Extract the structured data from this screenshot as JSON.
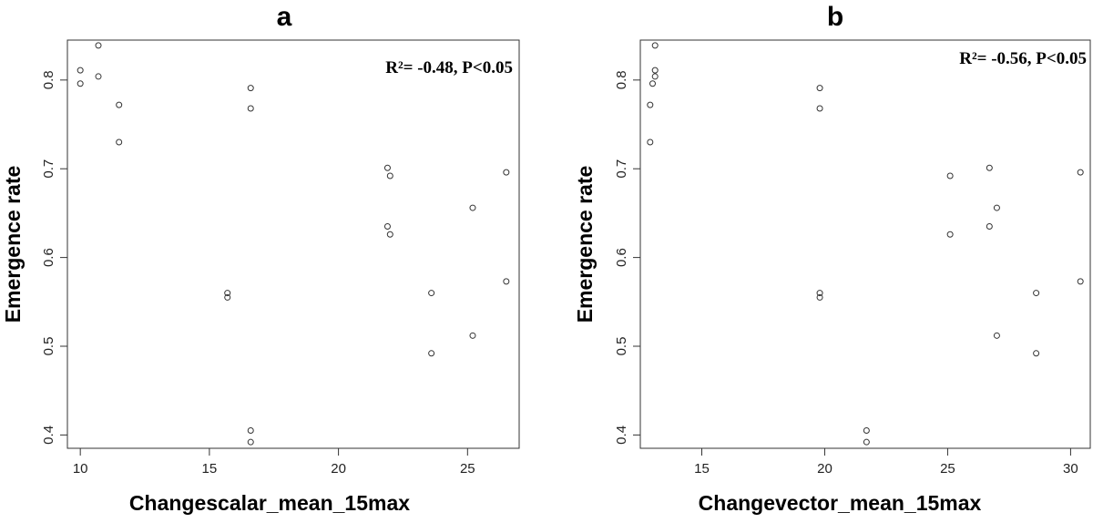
{
  "chart_data": [
    {
      "type": "scatter",
      "panel_label": "a",
      "xlabel": "Changescalar_mean_15max",
      "ylabel": "Emergence rate",
      "annotation": "R²= -0.48, P<0.05",
      "annotation_position": "top-right",
      "xlim": [
        9.5,
        27.0
      ],
      "ylim": [
        0.385,
        0.845
      ],
      "xticks": [
        "10",
        "15",
        "20",
        "25"
      ],
      "yticks": [
        "0.4",
        "0.5",
        "0.6",
        "0.7",
        "0.8"
      ],
      "grid": false,
      "points": [
        {
          "x": 10.0,
          "y": 0.811
        },
        {
          "x": 10.0,
          "y": 0.796
        },
        {
          "x": 10.7,
          "y": 0.839
        },
        {
          "x": 10.7,
          "y": 0.804
        },
        {
          "x": 11.5,
          "y": 0.772
        },
        {
          "x": 11.5,
          "y": 0.73
        },
        {
          "x": 15.7,
          "y": 0.56
        },
        {
          "x": 15.7,
          "y": 0.555
        },
        {
          "x": 16.6,
          "y": 0.791
        },
        {
          "x": 16.6,
          "y": 0.768
        },
        {
          "x": 16.6,
          "y": 0.405
        },
        {
          "x": 16.6,
          "y": 0.392
        },
        {
          "x": 21.9,
          "y": 0.701
        },
        {
          "x": 22.0,
          "y": 0.692
        },
        {
          "x": 21.9,
          "y": 0.635
        },
        {
          "x": 22.0,
          "y": 0.626
        },
        {
          "x": 23.6,
          "y": 0.56
        },
        {
          "x": 23.6,
          "y": 0.492
        },
        {
          "x": 25.2,
          "y": 0.656
        },
        {
          "x": 25.2,
          "y": 0.512
        },
        {
          "x": 26.5,
          "y": 0.696
        },
        {
          "x": 26.5,
          "y": 0.573
        }
      ]
    },
    {
      "type": "scatter",
      "panel_label": "b",
      "xlabel": "Changevector_mean_15max",
      "ylabel": "Emergence rate",
      "annotation": "R²= -0.56, P<0.05",
      "annotation_position": "top-right",
      "xlim": [
        12.5,
        30.8
      ],
      "ylim": [
        0.385,
        0.845
      ],
      "xticks": [
        "15",
        "20",
        "25",
        "30"
      ],
      "yticks": [
        "0.4",
        "0.5",
        "0.6",
        "0.7",
        "0.8"
      ],
      "grid": false,
      "points": [
        {
          "x": 13.1,
          "y": 0.839
        },
        {
          "x": 13.1,
          "y": 0.811
        },
        {
          "x": 13.1,
          "y": 0.804
        },
        {
          "x": 13.0,
          "y": 0.796
        },
        {
          "x": 12.9,
          "y": 0.772
        },
        {
          "x": 12.9,
          "y": 0.73
        },
        {
          "x": 19.8,
          "y": 0.791
        },
        {
          "x": 19.8,
          "y": 0.768
        },
        {
          "x": 19.8,
          "y": 0.56
        },
        {
          "x": 19.8,
          "y": 0.555
        },
        {
          "x": 21.7,
          "y": 0.405
        },
        {
          "x": 21.7,
          "y": 0.392
        },
        {
          "x": 25.1,
          "y": 0.692
        },
        {
          "x": 25.1,
          "y": 0.626
        },
        {
          "x": 26.7,
          "y": 0.701
        },
        {
          "x": 26.7,
          "y": 0.635
        },
        {
          "x": 27.0,
          "y": 0.656
        },
        {
          "x": 27.0,
          "y": 0.512
        },
        {
          "x": 28.6,
          "y": 0.56
        },
        {
          "x": 28.6,
          "y": 0.492
        },
        {
          "x": 30.4,
          "y": 0.696
        },
        {
          "x": 30.4,
          "y": 0.573
        }
      ]
    }
  ]
}
